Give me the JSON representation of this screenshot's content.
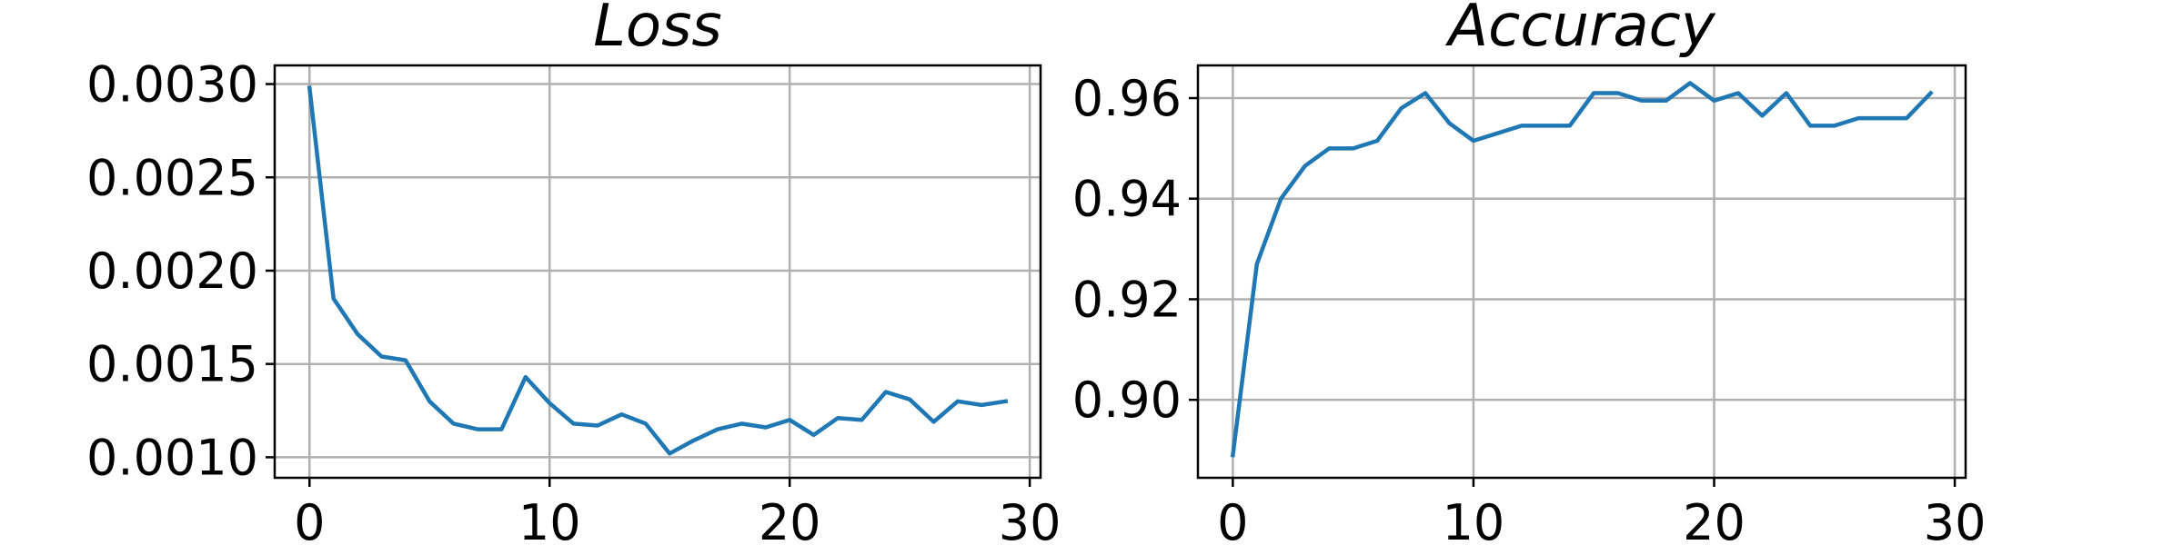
{
  "colors": {
    "line": "#1f77b4",
    "grid": "#b0b0b0",
    "frame": "#000000"
  },
  "chart_data": [
    {
      "type": "line",
      "title": "Loss",
      "xlabel": "",
      "ylabel": "",
      "grid": true,
      "xlim": [
        -1.45,
        30.45
      ],
      "ylim": [
        0.00089,
        0.0031
      ],
      "xticks": [
        0,
        10,
        20,
        30
      ],
      "xtick_labels": [
        "0",
        "10",
        "20",
        "30"
      ],
      "yticks": [
        0.001,
        0.0015,
        0.002,
        0.0025,
        0.003
      ],
      "ytick_labels": [
        "0.0010",
        "0.0015",
        "0.0020",
        "0.0025",
        "0.0030"
      ],
      "series": [
        {
          "name": "loss",
          "x": [
            0,
            1,
            2,
            3,
            4,
            5,
            6,
            7,
            8,
            9,
            10,
            11,
            12,
            13,
            14,
            15,
            16,
            17,
            18,
            19,
            20,
            21,
            22,
            23,
            24,
            25,
            26,
            27,
            28,
            29
          ],
          "values": [
            0.00298,
            0.00185,
            0.00166,
            0.00154,
            0.00152,
            0.0013,
            0.00118,
            0.00115,
            0.00115,
            0.00143,
            0.00129,
            0.00118,
            0.00117,
            0.00123,
            0.00118,
            0.00102,
            0.00109,
            0.00115,
            0.00118,
            0.00116,
            0.0012,
            0.00112,
            0.00121,
            0.0012,
            0.00135,
            0.00131,
            0.00119,
            0.0013,
            0.00128,
            0.0013
          ]
        }
      ]
    },
    {
      "type": "line",
      "title": "Accuracy",
      "xlabel": "",
      "ylabel": "",
      "grid": true,
      "xlim": [
        -1.45,
        30.45
      ],
      "ylim": [
        0.8845,
        0.9665
      ],
      "xticks": [
        0,
        10,
        20,
        30
      ],
      "xtick_labels": [
        "0",
        "10",
        "20",
        "30"
      ],
      "yticks": [
        0.9,
        0.92,
        0.94,
        0.96
      ],
      "ytick_labels": [
        "0.90",
        "0.92",
        "0.94",
        "0.96"
      ],
      "series": [
        {
          "name": "accuracy",
          "x": [
            0,
            1,
            2,
            3,
            4,
            5,
            6,
            7,
            8,
            9,
            10,
            11,
            12,
            13,
            14,
            15,
            16,
            17,
            18,
            19,
            20,
            21,
            22,
            23,
            24,
            25,
            26,
            27,
            28,
            29
          ],
          "values": [
            0.889,
            0.927,
            0.94,
            0.9465,
            0.95,
            0.95,
            0.9515,
            0.958,
            0.961,
            0.955,
            0.9515,
            0.953,
            0.9545,
            0.9545,
            0.9545,
            0.961,
            0.961,
            0.9595,
            0.9595,
            0.963,
            0.9595,
            0.961,
            0.9565,
            0.961,
            0.9545,
            0.9545,
            0.956,
            0.956,
            0.956,
            0.961
          ]
        }
      ]
    }
  ]
}
